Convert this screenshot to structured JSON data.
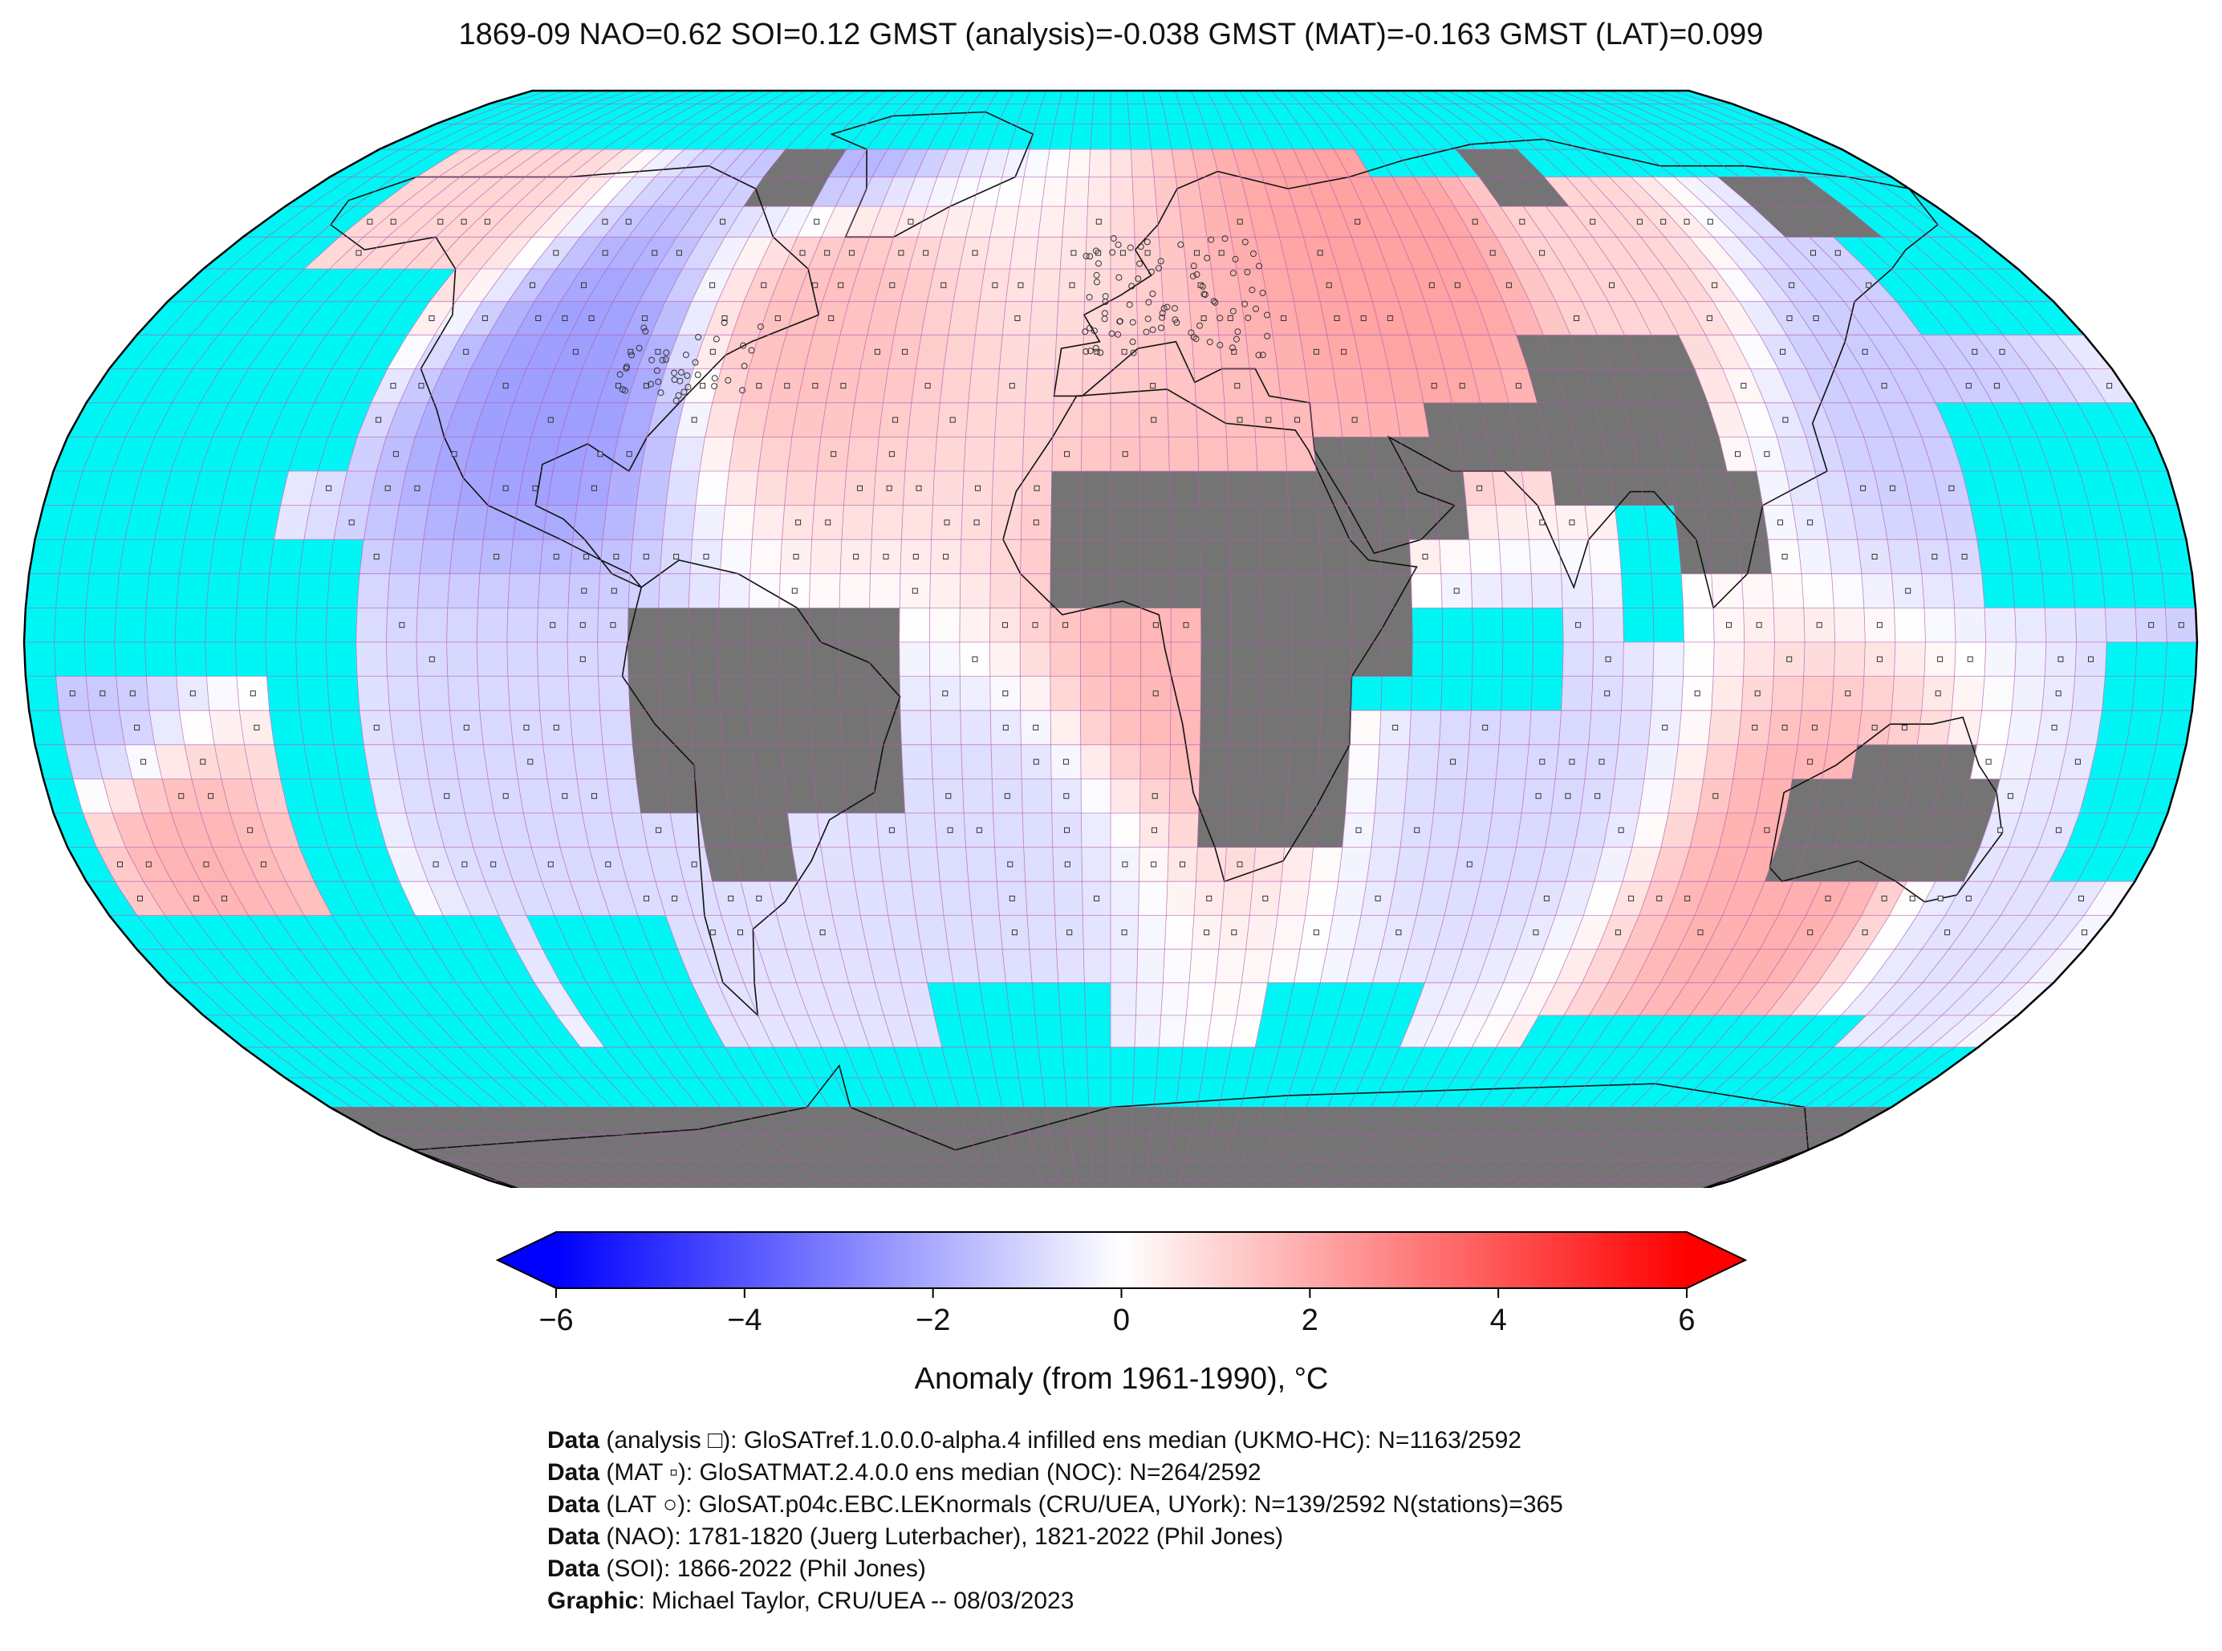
{
  "title": "1869-09 NAO=0.62 SOI=0.12 GMST (analysis)=-0.038 GMST (MAT)=-0.163 GMST (LAT)=0.099",
  "colors": {
    "ocean_masked": "#00f5f5",
    "land_nodata": "#747474",
    "grid_line": "#b05cb0",
    "coast": "#111111",
    "cold": "#0000ff",
    "neutral": "#ffffff",
    "warm": "#ff0000"
  },
  "colorbar": {
    "label": "Anomaly (from 1961-1990), °C",
    "min": -6,
    "max": 6,
    "extend": "both",
    "ticks": [
      {
        "value": -6,
        "label": "−6"
      },
      {
        "value": -4,
        "label": "−4"
      },
      {
        "value": -2,
        "label": "−2"
      },
      {
        "value": 0,
        "label": "0"
      },
      {
        "value": 2,
        "label": "2"
      },
      {
        "value": 4,
        "label": "4"
      },
      {
        "value": 6,
        "label": "6"
      }
    ]
  },
  "map": {
    "projection": "robinson",
    "grid_resolution_deg": 5,
    "anomaly_regions": [
      {
        "lon": -97,
        "lat": 36,
        "value": -2.3
      },
      {
        "lon": -60,
        "lat": 80,
        "value": -1.8
      },
      {
        "lon": -140,
        "lat": 65,
        "value": 1.0
      },
      {
        "lon": -55,
        "lat": 48,
        "value": 1.5
      },
      {
        "lon": 60,
        "lat": 58,
        "value": 2.2
      },
      {
        "lon": 100,
        "lat": 58,
        "value": 1.0
      },
      {
        "lon": 140,
        "lat": 38,
        "value": -1.2
      },
      {
        "lon": 12,
        "lat": -2,
        "value": 1.7
      },
      {
        "lon": -160,
        "lat": -30,
        "value": 1.8
      },
      {
        "lon": -170,
        "lat": -10,
        "value": -1.3
      },
      {
        "lon": -100,
        "lat": -15,
        "value": -0.9
      },
      {
        "lon": 120,
        "lat": -35,
        "value": 1.9
      },
      {
        "lon": 70,
        "lat": -18,
        "value": -0.9
      },
      {
        "lon": -20,
        "lat": -30,
        "value": -0.8
      },
      {
        "lon": 160,
        "lat": -40,
        "value": -0.7
      }
    ],
    "masked_boxes": [
      {
        "lon_min": -180,
        "lon_max": 180,
        "lat_min": 75,
        "lat_max": 90
      },
      {
        "lon_min": -180,
        "lon_max": -160,
        "lat_min": 40,
        "lat_max": 75
      },
      {
        "lon_min": -180,
        "lon_max": -130,
        "lat_min": 25,
        "lat_max": 55
      },
      {
        "lon_min": -180,
        "lon_max": -140,
        "lat_min": -5,
        "lat_max": 25
      },
      {
        "lon_min": -180,
        "lon_max": -110,
        "lat_min": -60,
        "lat_max": -40
      },
      {
        "lon_min": -180,
        "lon_max": -175,
        "lat_min": -40,
        "lat_max": -5
      },
      {
        "lon_min": -140,
        "lon_max": -125,
        "lat_min": -40,
        "lat_max": 15
      },
      {
        "lon_min": -105,
        "lon_max": -80,
        "lat_min": -60,
        "lat_max": -40
      },
      {
        "lon_min": -35,
        "lon_max": 0,
        "lat_min": -60,
        "lat_max": -50
      },
      {
        "lon_min": 30,
        "lon_max": 60,
        "lat_min": -60,
        "lat_max": -50
      },
      {
        "lon_min": 85,
        "lon_max": 150,
        "lat_min": -60,
        "lat_max": -55
      },
      {
        "lon_min": 60,
        "lon_max": 180,
        "lat_min": 70,
        "lat_max": 75
      },
      {
        "lon_min": 150,
        "lon_max": 180,
        "lat_min": 45,
        "lat_max": 70
      },
      {
        "lon_min": 145,
        "lon_max": 180,
        "lat_min": 5,
        "lat_max": 35
      },
      {
        "lon_min": 40,
        "lon_max": 75,
        "lat_min": -10,
        "lat_max": 5
      },
      {
        "lon_min": 85,
        "lon_max": 95,
        "lat_min": 0,
        "lat_max": 20
      },
      {
        "lon_min": 165,
        "lon_max": 180,
        "lat_min": -35,
        "lat_max": 0
      },
      {
        "lon_min": -180,
        "lon_max": 180,
        "lat_min": -90,
        "lat_max": -60
      }
    ],
    "nodata_land": [
      {
        "lon_min": -80,
        "lon_max": -35,
        "lat_min": -25,
        "lat_max": 5
      },
      {
        "lon_min": -70,
        "lon_max": -55,
        "lat_min": -35,
        "lat_max": -25
      },
      {
        "lon_min": -10,
        "lon_max": 45,
        "lat_min": 5,
        "lat_max": 25
      },
      {
        "lon_min": 15,
        "lon_max": 40,
        "lat_min": -30,
        "lat_max": 5
      },
      {
        "lon_min": 30,
        "lon_max": 50,
        "lat_min": -5,
        "lat_max": 15
      },
      {
        "lon_min": 35,
        "lon_max": 60,
        "lat_min": 15,
        "lat_max": 30
      },
      {
        "lon_min": 55,
        "lon_max": 95,
        "lat_min": 25,
        "lat_max": 35
      },
      {
        "lon_min": 75,
        "lon_max": 105,
        "lat_min": 20,
        "lat_max": 45
      },
      {
        "lon_min": 95,
        "lon_max": 110,
        "lat_min": 10,
        "lat_max": 25
      },
      {
        "lon_min": 115,
        "lon_max": 150,
        "lat_min": -35,
        "lat_max": -20
      },
      {
        "lon_min": 125,
        "lon_max": 145,
        "lat_min": -20,
        "lat_max": -15
      },
      {
        "lon_min": -80,
        "lon_max": -65,
        "lat_min": 65,
        "lat_max": 75
      },
      {
        "lon_min": 85,
        "lon_max": 100,
        "lat_min": 65,
        "lat_max": 75
      },
      {
        "lon_min": 140,
        "lon_max": 160,
        "lat_min": 60,
        "lat_max": 70
      },
      {
        "lon_min": -180,
        "lon_max": 180,
        "lat_min": -90,
        "lat_max": -70
      }
    ]
  },
  "credits": [
    {
      "key": "Data",
      "text": " (analysis □): GloSATref.1.0.0.0-alpha.4 infilled ens median (UKMO-HC): N=1163/2592"
    },
    {
      "key": "Data",
      "text": " (MAT ▫): GloSATMAT.2.4.0.0 ens median (NOC): N=264/2592"
    },
    {
      "key": "Data",
      "text": " (LAT ○): GloSAT.p04c.EBC.LEKnormals (CRU/UEA, UYork): N=139/2592 N(stations)=365"
    },
    {
      "key": "Data",
      "text": " (NAO): 1781-1820 (Juerg Luterbacher), 1821-2022 (Phil Jones)"
    },
    {
      "key": "Data",
      "text": " (SOI): 1866-2022 (Phil Jones)"
    },
    {
      "key": "Graphic",
      "text": ": Michael Taylor, CRU/UEA -- 08/03/2023"
    }
  ]
}
